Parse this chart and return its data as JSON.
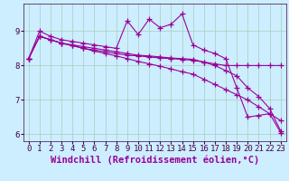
{
  "xlabel": "Windchill (Refroidissement éolien,°C)",
  "x": [
    0,
    1,
    2,
    3,
    4,
    5,
    6,
    7,
    8,
    9,
    10,
    11,
    12,
    13,
    14,
    15,
    16,
    17,
    18,
    19,
    20,
    21,
    22,
    23
  ],
  "series": [
    [
      8.2,
      9.0,
      8.85,
      8.75,
      8.7,
      8.65,
      8.6,
      8.55,
      8.5,
      9.3,
      8.9,
      9.35,
      9.1,
      9.2,
      9.5,
      8.6,
      8.45,
      8.35,
      8.2,
      7.35,
      6.5,
      6.55,
      6.6,
      6.05
    ],
    [
      8.2,
      8.85,
      8.75,
      8.65,
      8.6,
      8.55,
      8.5,
      8.45,
      8.4,
      8.35,
      8.3,
      8.28,
      8.25,
      8.22,
      8.2,
      8.18,
      8.1,
      8.0,
      7.85,
      7.7,
      7.35,
      7.1,
      6.75,
      6.1
    ],
    [
      8.2,
      8.85,
      8.75,
      8.65,
      8.58,
      8.5,
      8.45,
      8.4,
      8.35,
      8.3,
      8.28,
      8.25,
      8.22,
      8.2,
      8.18,
      8.15,
      8.1,
      8.05,
      8.0,
      8.0,
      8.0,
      8.0,
      8.0,
      8.0
    ],
    [
      8.2,
      8.85,
      8.75,
      8.65,
      8.58,
      8.5,
      8.42,
      8.35,
      8.28,
      8.2,
      8.12,
      8.05,
      7.98,
      7.9,
      7.82,
      7.75,
      7.6,
      7.45,
      7.3,
      7.15,
      7.0,
      6.8,
      6.6,
      6.4
    ]
  ],
  "line_color": "#990099",
  "marker": "+",
  "markersize": 4,
  "linewidth": 0.8,
  "markeredgewidth": 0.9,
  "ylim": [
    5.8,
    9.8
  ],
  "yticks": [
    6,
    7,
    8,
    9
  ],
  "xlim": [
    -0.5,
    23.5
  ],
  "xticks": [
    0,
    1,
    2,
    3,
    4,
    5,
    6,
    7,
    8,
    9,
    10,
    11,
    12,
    13,
    14,
    15,
    16,
    17,
    18,
    19,
    20,
    21,
    22,
    23
  ],
  "bg_color": "#cceeff",
  "grid_color": "#aaccbb",
  "tick_fontsize": 6.5,
  "xlabel_fontsize": 7.5
}
